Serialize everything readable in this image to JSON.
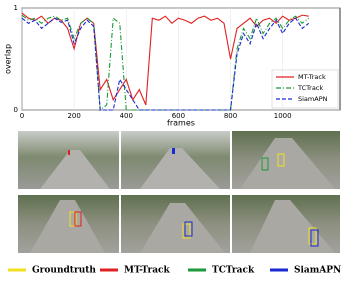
{
  "chart_data": {
    "type": "line",
    "xlabel": "frames",
    "ylabel": "overlap",
    "x": [
      0,
      25,
      50,
      75,
      100,
      125,
      150,
      175,
      200,
      225,
      250,
      275,
      300,
      325,
      350,
      375,
      400,
      425,
      450,
      475,
      500,
      525,
      550,
      575,
      600,
      625,
      650,
      675,
      700,
      725,
      750,
      775,
      800,
      825,
      850,
      875,
      900,
      925,
      950,
      975,
      1000,
      1025,
      1050,
      1075,
      1100
    ],
    "series": [
      {
        "name": "MT-Track",
        "color": "#e02020",
        "linestyle": "solid",
        "values": [
          0.95,
          0.9,
          0.88,
          0.92,
          0.85,
          0.9,
          0.88,
          0.8,
          0.6,
          0.85,
          0.9,
          0.85,
          0.2,
          0.3,
          0.1,
          0.2,
          0.3,
          0.1,
          0.2,
          0.05,
          0.9,
          0.88,
          0.92,
          0.85,
          0.9,
          0.88,
          0.85,
          0.9,
          0.92,
          0.88,
          0.9,
          0.85,
          0.5,
          0.8,
          0.85,
          0.9,
          0.82,
          0.88,
          0.9,
          0.85,
          0.92,
          0.88,
          0.9,
          0.93,
          0.92
        ]
      },
      {
        "name": "TCTrack",
        "color": "#1a9a3a",
        "linestyle": "dashdot",
        "values": [
          0.93,
          0.88,
          0.9,
          0.85,
          0.9,
          0.92,
          0.88,
          0.9,
          0.7,
          0.85,
          0.9,
          0.85,
          0,
          0.05,
          0.9,
          0.85,
          0,
          0,
          0,
          0,
          0,
          0,
          0,
          0,
          0,
          0,
          0,
          0,
          0,
          0,
          0,
          0,
          0,
          0.6,
          0.8,
          0.7,
          0.9,
          0.75,
          0.85,
          0.9,
          0.8,
          0.88,
          0.92,
          0.85,
          0.9
        ]
      },
      {
        "name": "SiamAPN",
        "color": "#1a2ad0",
        "linestyle": "dashed",
        "values": [
          0.9,
          0.85,
          0.88,
          0.8,
          0.85,
          0.9,
          0.86,
          0.88,
          0.65,
          0.8,
          0.88,
          0.82,
          0,
          0,
          0,
          0.3,
          0.2,
          0.1,
          0,
          0,
          0,
          0,
          0,
          0,
          0,
          0,
          0,
          0,
          0,
          0,
          0,
          0,
          0,
          0.55,
          0.75,
          0.65,
          0.85,
          0.7,
          0.8,
          0.88,
          0.75,
          0.85,
          0.9,
          0.8,
          0.85
        ]
      }
    ],
    "xlim": [
      0,
      1220
    ],
    "ylim": [
      0,
      1
    ],
    "xticks": [
      0,
      200,
      400,
      600,
      800,
      1000
    ],
    "yticks": [
      0,
      1
    ],
    "grid": true,
    "legend": "lower right"
  },
  "figure_legend": [
    {
      "label": "Groundtruth",
      "color": "#f0e020"
    },
    {
      "label": "MT-Track",
      "color": "#e02020"
    },
    {
      "label": "TCTrack",
      "color": "#1a9a3a"
    },
    {
      "label": "SiamAPN",
      "color": "#1a2ad0"
    }
  ]
}
